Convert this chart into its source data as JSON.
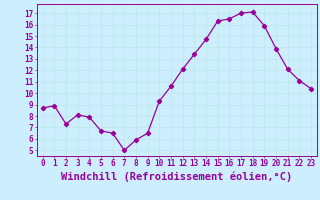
{
  "x": [
    0,
    1,
    2,
    3,
    4,
    5,
    6,
    7,
    8,
    9,
    10,
    11,
    12,
    13,
    14,
    15,
    16,
    17,
    18,
    19,
    20,
    21,
    22,
    23
  ],
  "y": [
    8.7,
    8.9,
    7.3,
    8.1,
    7.9,
    6.7,
    6.5,
    5.0,
    5.9,
    6.5,
    9.3,
    10.6,
    12.1,
    13.4,
    14.7,
    16.3,
    16.5,
    17.0,
    17.1,
    15.9,
    13.9,
    12.1,
    11.1,
    10.4
  ],
  "line_color": "#990099",
  "marker": "D",
  "marker_size": 2.2,
  "bg_color": "#cceeff",
  "grid_color": "#aadddd",
  "xlabel": "Windchill (Refroidissement éolien,°C)",
  "xlabel_color": "#990099",
  "ylabel_ticks": [
    5,
    6,
    7,
    8,
    9,
    10,
    11,
    12,
    13,
    14,
    15,
    16,
    17
  ],
  "xtick_labels": [
    "0",
    "1",
    "2",
    "3",
    "4",
    "5",
    "6",
    "7",
    "8",
    "9",
    "10",
    "11",
    "12",
    "13",
    "14",
    "15",
    "16",
    "17",
    "18",
    "19",
    "20",
    "21",
    "22",
    "23"
  ],
  "ylim": [
    4.5,
    17.8
  ],
  "xlim": [
    -0.5,
    23.5
  ],
  "tick_color": "#990099",
  "tick_fontsize": 5.5,
  "xlabel_fontsize": 7.5,
  "linewidth": 0.9
}
